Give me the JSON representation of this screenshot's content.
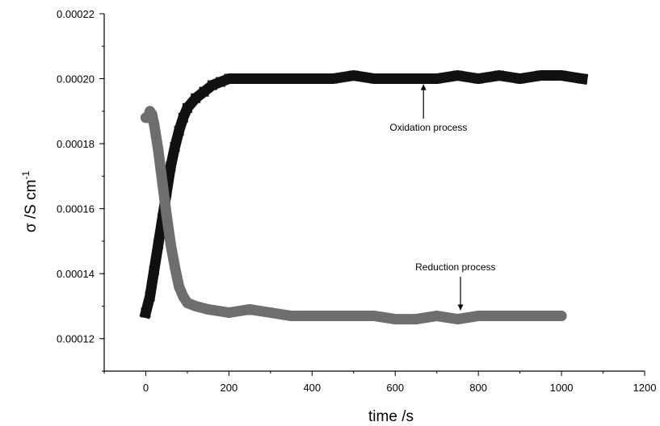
{
  "chart_data": {
    "type": "scatter",
    "xlabel": "time /s",
    "ylabel": {
      "base": "σ /S cm",
      "sup": "-1"
    },
    "xlim": [
      -100,
      1200
    ],
    "ylim": [
      0.00011,
      0.00022
    ],
    "xticks": [
      0,
      200,
      400,
      600,
      800,
      1000,
      1200
    ],
    "xtick_labels": [
      "0",
      "200",
      "400",
      "600",
      "800",
      "1000",
      "1200"
    ],
    "yticks": [
      0.00012,
      0.00014,
      0.00016,
      0.00018,
      0.0002,
      0.00022
    ],
    "ytick_labels": [
      "0.00012",
      "0.00014",
      "0.00016",
      "0.00018",
      "0.00020",
      "0.00022"
    ],
    "grid": false,
    "series": [
      {
        "color": "#111111",
        "marker": "square",
        "x": [
          0,
          10,
          20,
          30,
          40,
          50,
          60,
          70,
          80,
          90,
          100,
          120,
          140,
          160,
          180,
          200,
          250,
          300,
          350,
          400,
          450,
          500,
          550,
          600,
          650,
          700,
          750,
          800,
          850,
          900,
          950,
          1000,
          1050
        ],
        "y": [
          0.000128,
          0.000133,
          0.000141,
          0.000149,
          0.000157,
          0.000165,
          0.000173,
          0.000179,
          0.000184,
          0.000188,
          0.000191,
          0.000194,
          0.000196,
          0.000198,
          0.000199,
          0.0002,
          0.0002,
          0.0002,
          0.0002,
          0.0002,
          0.0002,
          0.000201,
          0.0002,
          0.0002,
          0.0002,
          0.0002,
          0.000201,
          0.0002,
          0.000201,
          0.0002,
          0.000201,
          0.000201,
          0.0002
        ]
      },
      {
        "color": "#6e6e6e",
        "marker": "circle",
        "x": [
          0,
          5,
          10,
          15,
          20,
          30,
          40,
          50,
          60,
          70,
          80,
          90,
          100,
          120,
          150,
          200,
          250,
          300,
          350,
          400,
          450,
          500,
          550,
          600,
          650,
          700,
          750,
          800,
          850,
          900,
          950,
          1000
        ],
        "y": [
          0.000188,
          0.000188,
          0.00019,
          0.000189,
          0.000186,
          0.000178,
          0.000168,
          0.000158,
          0.000149,
          0.000142,
          0.000136,
          0.000133,
          0.000131,
          0.00013,
          0.000129,
          0.000128,
          0.000129,
          0.000128,
          0.000127,
          0.000127,
          0.000127,
          0.000127,
          0.000127,
          0.000126,
          0.000126,
          0.000127,
          0.000126,
          0.000127,
          0.000127,
          0.000127,
          0.000127,
          0.000127
        ]
      }
    ],
    "annotations": [
      {
        "text": "Oxidation process",
        "at": [
          680,
          0.000184
        ],
        "arrow_to": [
          668,
          0.000199
        ]
      },
      {
        "text": "Reduction process",
        "at": [
          745,
          0.000141
        ],
        "arrow_to": [
          757,
          0.000128
        ]
      }
    ]
  }
}
